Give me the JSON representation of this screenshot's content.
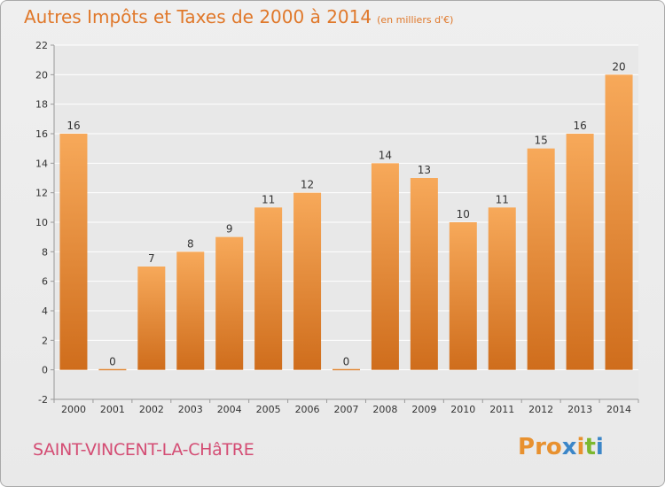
{
  "page": {
    "title": "Autres Impôts et Taxes de 2000 à 2014",
    "unit": "(en milliers d'€)",
    "commune": "SAINT-VINCENT-LA-CHâTRE",
    "logo_text": "Proxiti"
  },
  "colors": {
    "title": "#e0782a",
    "commune": "#d44d74",
    "bar_top": "#f7a95a",
    "bar_bottom": "#cf6d1c",
    "grid": "#ffffff",
    "axis": "#999999",
    "label": "#333333",
    "logo": [
      "#e8912f",
      "#e8912f",
      "#e8912f",
      "#3b86c8",
      "#e8912f",
      "#7cb82f",
      "#3b86c8"
    ]
  },
  "chart_data": {
    "type": "bar",
    "categories": [
      "2000",
      "2001",
      "2002",
      "2003",
      "2004",
      "2005",
      "2006",
      "2007",
      "2008",
      "2009",
      "2010",
      "2011",
      "2012",
      "2013",
      "2014"
    ],
    "values": [
      16,
      0,
      7,
      8,
      9,
      11,
      12,
      0,
      14,
      13,
      10,
      11,
      15,
      16,
      20
    ],
    "data_labels": [
      "16",
      "0",
      "7",
      "8",
      "9",
      "11",
      "12",
      "0",
      "14",
      "13",
      "10",
      "11",
      "15",
      "16",
      "20"
    ],
    "ylim": [
      -2,
      22
    ],
    "yticks": [
      "-2",
      "0",
      "2",
      "4",
      "6",
      "8",
      "10",
      "12",
      "14",
      "16",
      "18",
      "20",
      "22"
    ],
    "grid": "horizontal",
    "legend": "none"
  }
}
